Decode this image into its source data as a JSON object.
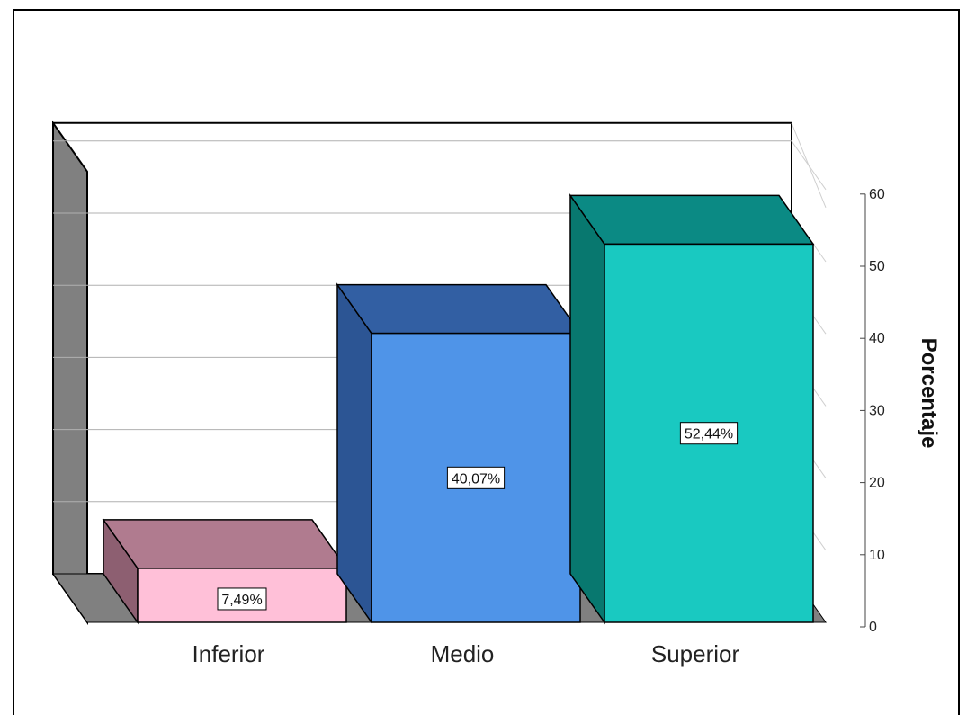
{
  "chart_data": {
    "type": "bar",
    "three_d": true,
    "categories": [
      "Inferior",
      "Medio",
      "Superior"
    ],
    "values": [
      7.49,
      40.07,
      52.44
    ],
    "data_labels": [
      "7,49%",
      "40,07%",
      "52,44%"
    ],
    "ylabel": "Porcentaje",
    "y_axis_side": "right",
    "ylim": [
      0,
      60
    ],
    "yticks": [
      0,
      10,
      20,
      30,
      40,
      50,
      60
    ],
    "grid": true,
    "legend": "none",
    "colors": {
      "bars_front": [
        "#ffc0d8",
        "#4f94e8",
        "#19c9c1"
      ],
      "bars_top": [
        "#b07b8f",
        "#325fa3",
        "#0b8a84"
      ],
      "bars_side": [
        "#8d5f71",
        "#2c5594",
        "#08786f"
      ],
      "walls": "#808080",
      "floor": "#808080",
      "gridline": "#b0b0b0"
    }
  }
}
